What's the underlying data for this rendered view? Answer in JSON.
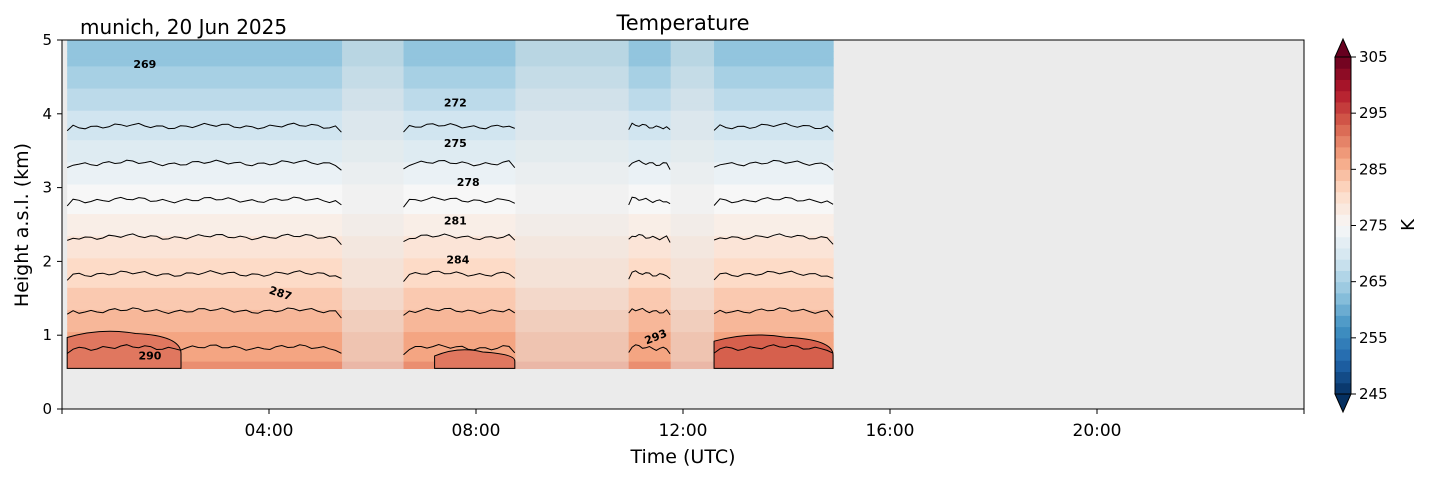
{
  "chart_data": {
    "type": "heatmap",
    "title": "Temperature",
    "subtitle": "munich, 20 Jun 2025",
    "xlabel": "Time (UTC)",
    "ylabel": "Height a.s.l. (km)",
    "xlim": [
      0,
      24
    ],
    "ylim": [
      0,
      5
    ],
    "x_ticks": [
      {
        "value": 4,
        "label": "04:00"
      },
      {
        "value": 8,
        "label": "08:00"
      },
      {
        "value": 12,
        "label": "12:00"
      },
      {
        "value": 16,
        "label": "16:00"
      },
      {
        "value": 20,
        "label": "20:00"
      }
    ],
    "y_ticks": [
      {
        "value": 0,
        "label": "0"
      },
      {
        "value": 1,
        "label": "1"
      },
      {
        "value": 2,
        "label": "2"
      },
      {
        "value": 3,
        "label": "3"
      },
      {
        "value": 4,
        "label": "4"
      },
      {
        "value": 5,
        "label": "5"
      }
    ],
    "colorbar": {
      "label": "K",
      "min": 245,
      "max": 305,
      "colormap": "RdBu_r",
      "extend": "both",
      "ticks": [
        {
          "value": 245,
          "label": "245"
        },
        {
          "value": 255,
          "label": "255"
        },
        {
          "value": 265,
          "label": "265"
        },
        {
          "value": 275,
          "label": "275"
        },
        {
          "value": 285,
          "label": "285"
        },
        {
          "value": 295,
          "label": "295"
        },
        {
          "value": 305,
          "label": "305"
        }
      ]
    },
    "background_color": "#ebebeb",
    "min_height_km": 0.55,
    "surface_temperature_K": 292,
    "lapse_rate_K_per_km": 6.0,
    "data_blocks": [
      {
        "start": 0.1,
        "end": 5.4,
        "style": "solid"
      },
      {
        "start": 5.4,
        "end": 6.6,
        "style": "faded"
      },
      {
        "start": 6.6,
        "end": 8.75,
        "style": "solid"
      },
      {
        "start": 8.75,
        "end": 10.95,
        "style": "faded"
      },
      {
        "start": 10.95,
        "end": 11.75,
        "style": "solid"
      },
      {
        "start": 11.75,
        "end": 12.6,
        "style": "faded"
      },
      {
        "start": 12.6,
        "end": 14.9,
        "style": "solid"
      }
    ],
    "contour_levels": [
      269,
      272,
      275,
      278,
      281,
      284,
      287,
      290,
      293
    ],
    "contour_labels": [
      {
        "label": "269",
        "x": 1.6,
        "y": 4.62,
        "angle": 0
      },
      {
        "label": "272",
        "x": 7.6,
        "y": 4.1,
        "angle": 0
      },
      {
        "label": "275",
        "x": 7.6,
        "y": 3.55,
        "angle": 0
      },
      {
        "label": "278",
        "x": 7.85,
        "y": 3.02,
        "angle": 0
      },
      {
        "label": "281",
        "x": 7.6,
        "y": 2.5,
        "angle": 0
      },
      {
        "label": "284",
        "x": 7.65,
        "y": 1.97,
        "angle": 0
      },
      {
        "label": "287",
        "x": 4.2,
        "y": 1.52,
        "angle": 18
      },
      {
        "label": "290",
        "x": 1.7,
        "y": 0.67,
        "angle": 0
      },
      {
        "label": "293",
        "x": 11.5,
        "y": 0.93,
        "angle": -22
      }
    ],
    "warm_blobs": [
      {
        "x0": 0.1,
        "x1": 2.3,
        "top": 1.05,
        "level": 290
      },
      {
        "x0": 7.2,
        "x1": 8.75,
        "top": 0.8,
        "level": 290
      },
      {
        "x0": 12.6,
        "x1": 14.9,
        "top": 1.0,
        "level": 293
      }
    ]
  }
}
